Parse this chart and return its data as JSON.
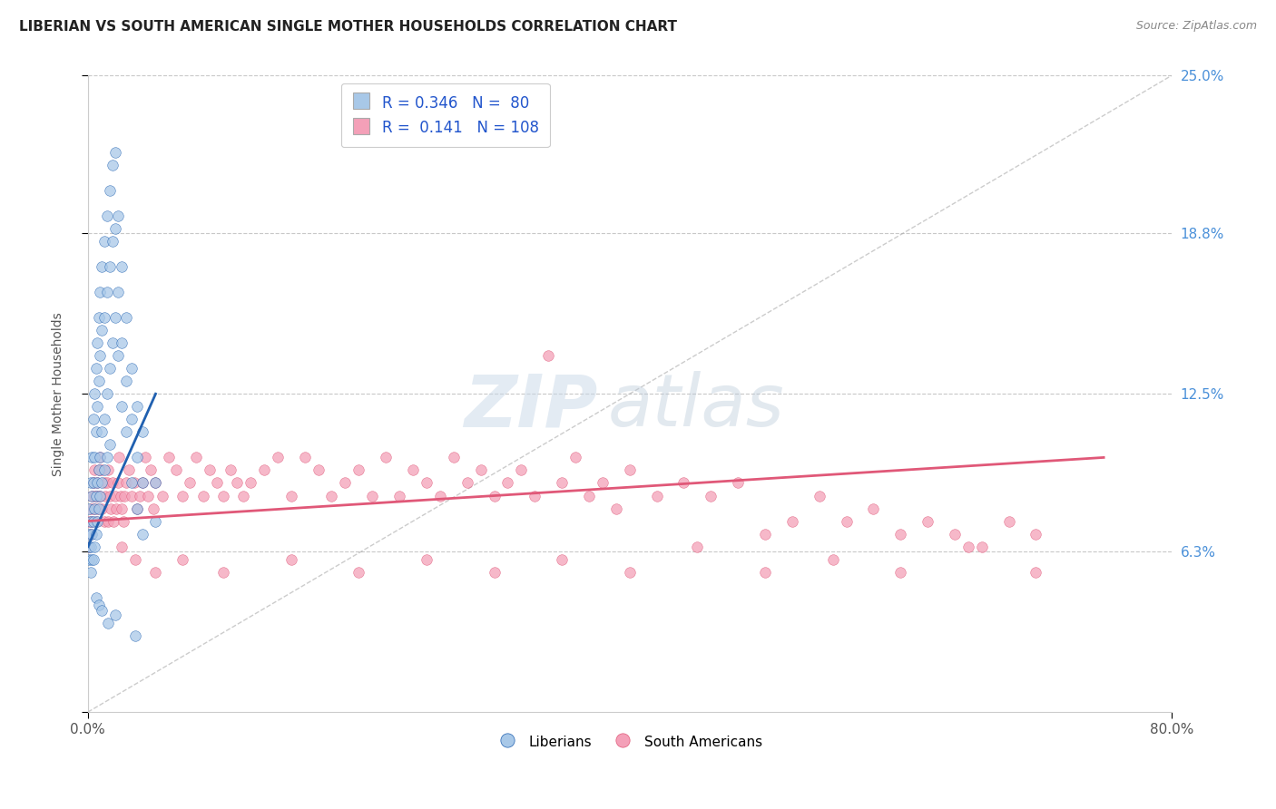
{
  "title": "LIBERIAN VS SOUTH AMERICAN SINGLE MOTHER HOUSEHOLDS CORRELATION CHART",
  "source": "Source: ZipAtlas.com",
  "ylabel": "Single Mother Households",
  "xlim": [
    0.0,
    0.8
  ],
  "ylim": [
    0.0,
    0.25
  ],
  "color_liberian": "#a8c8e8",
  "color_sa": "#f4a0b8",
  "line_color_liberian": "#2060b0",
  "line_color_sa": "#e05878",
  "grid_color": "#c8c8c8",
  "title_color": "#222222",
  "axis_label_color": "#555555",
  "tick_label_color_right": "#4a90d9",
  "watermark_zip": "ZIP",
  "watermark_atlas": "atlas",
  "liberian_scatter": [
    [
      0.001,
      0.08
    ],
    [
      0.001,
      0.07
    ],
    [
      0.001,
      0.065
    ],
    [
      0.001,
      0.06
    ],
    [
      0.002,
      0.09
    ],
    [
      0.002,
      0.075
    ],
    [
      0.002,
      0.065
    ],
    [
      0.002,
      0.055
    ],
    [
      0.003,
      0.1
    ],
    [
      0.003,
      0.085
    ],
    [
      0.003,
      0.07
    ],
    [
      0.003,
      0.06
    ],
    [
      0.004,
      0.115
    ],
    [
      0.004,
      0.09
    ],
    [
      0.004,
      0.075
    ],
    [
      0.004,
      0.06
    ],
    [
      0.005,
      0.125
    ],
    [
      0.005,
      0.1
    ],
    [
      0.005,
      0.08
    ],
    [
      0.005,
      0.065
    ],
    [
      0.006,
      0.135
    ],
    [
      0.006,
      0.11
    ],
    [
      0.006,
      0.085
    ],
    [
      0.006,
      0.07
    ],
    [
      0.007,
      0.145
    ],
    [
      0.007,
      0.12
    ],
    [
      0.007,
      0.09
    ],
    [
      0.007,
      0.075
    ],
    [
      0.008,
      0.155
    ],
    [
      0.008,
      0.13
    ],
    [
      0.008,
      0.095
    ],
    [
      0.008,
      0.08
    ],
    [
      0.009,
      0.165
    ],
    [
      0.009,
      0.14
    ],
    [
      0.009,
      0.1
    ],
    [
      0.009,
      0.085
    ],
    [
      0.01,
      0.175
    ],
    [
      0.01,
      0.15
    ],
    [
      0.01,
      0.11
    ],
    [
      0.01,
      0.09
    ],
    [
      0.012,
      0.185
    ],
    [
      0.012,
      0.155
    ],
    [
      0.012,
      0.115
    ],
    [
      0.012,
      0.095
    ],
    [
      0.014,
      0.195
    ],
    [
      0.014,
      0.165
    ],
    [
      0.014,
      0.125
    ],
    [
      0.014,
      0.1
    ],
    [
      0.016,
      0.205
    ],
    [
      0.016,
      0.175
    ],
    [
      0.016,
      0.135
    ],
    [
      0.016,
      0.105
    ],
    [
      0.018,
      0.215
    ],
    [
      0.018,
      0.185
    ],
    [
      0.018,
      0.145
    ],
    [
      0.02,
      0.22
    ],
    [
      0.02,
      0.19
    ],
    [
      0.02,
      0.155
    ],
    [
      0.022,
      0.195
    ],
    [
      0.022,
      0.165
    ],
    [
      0.022,
      0.14
    ],
    [
      0.025,
      0.175
    ],
    [
      0.025,
      0.145
    ],
    [
      0.025,
      0.12
    ],
    [
      0.028,
      0.155
    ],
    [
      0.028,
      0.13
    ],
    [
      0.028,
      0.11
    ],
    [
      0.032,
      0.135
    ],
    [
      0.032,
      0.115
    ],
    [
      0.032,
      0.09
    ],
    [
      0.036,
      0.12
    ],
    [
      0.036,
      0.1
    ],
    [
      0.036,
      0.08
    ],
    [
      0.04,
      0.11
    ],
    [
      0.04,
      0.09
    ],
    [
      0.04,
      0.07
    ],
    [
      0.05,
      0.09
    ],
    [
      0.05,
      0.075
    ],
    [
      0.006,
      0.045
    ],
    [
      0.008,
      0.042
    ],
    [
      0.01,
      0.04
    ],
    [
      0.015,
      0.035
    ],
    [
      0.02,
      0.038
    ],
    [
      0.035,
      0.03
    ]
  ],
  "sa_scatter": [
    [
      0.001,
      0.075
    ],
    [
      0.001,
      0.065
    ],
    [
      0.002,
      0.08
    ],
    [
      0.002,
      0.07
    ],
    [
      0.003,
      0.085
    ],
    [
      0.003,
      0.075
    ],
    [
      0.004,
      0.09
    ],
    [
      0.004,
      0.08
    ],
    [
      0.005,
      0.095
    ],
    [
      0.005,
      0.085
    ],
    [
      0.006,
      0.085
    ],
    [
      0.006,
      0.075
    ],
    [
      0.007,
      0.09
    ],
    [
      0.007,
      0.08
    ],
    [
      0.008,
      0.095
    ],
    [
      0.008,
      0.085
    ],
    [
      0.009,
      0.1
    ],
    [
      0.009,
      0.085
    ],
    [
      0.01,
      0.095
    ],
    [
      0.01,
      0.08
    ],
    [
      0.012,
      0.09
    ],
    [
      0.012,
      0.075
    ],
    [
      0.013,
      0.085
    ],
    [
      0.014,
      0.09
    ],
    [
      0.015,
      0.095
    ],
    [
      0.015,
      0.075
    ],
    [
      0.016,
      0.085
    ],
    [
      0.017,
      0.08
    ],
    [
      0.018,
      0.09
    ],
    [
      0.019,
      0.075
    ],
    [
      0.02,
      0.085
    ],
    [
      0.021,
      0.08
    ],
    [
      0.022,
      0.09
    ],
    [
      0.023,
      0.1
    ],
    [
      0.024,
      0.085
    ],
    [
      0.025,
      0.08
    ],
    [
      0.026,
      0.075
    ],
    [
      0.027,
      0.085
    ],
    [
      0.028,
      0.09
    ],
    [
      0.03,
      0.095
    ],
    [
      0.032,
      0.085
    ],
    [
      0.034,
      0.09
    ],
    [
      0.036,
      0.08
    ],
    [
      0.038,
      0.085
    ],
    [
      0.04,
      0.09
    ],
    [
      0.042,
      0.1
    ],
    [
      0.044,
      0.085
    ],
    [
      0.046,
      0.095
    ],
    [
      0.048,
      0.08
    ],
    [
      0.05,
      0.09
    ],
    [
      0.055,
      0.085
    ],
    [
      0.06,
      0.1
    ],
    [
      0.065,
      0.095
    ],
    [
      0.07,
      0.085
    ],
    [
      0.075,
      0.09
    ],
    [
      0.08,
      0.1
    ],
    [
      0.085,
      0.085
    ],
    [
      0.09,
      0.095
    ],
    [
      0.095,
      0.09
    ],
    [
      0.1,
      0.085
    ],
    [
      0.105,
      0.095
    ],
    [
      0.11,
      0.09
    ],
    [
      0.115,
      0.085
    ],
    [
      0.12,
      0.09
    ],
    [
      0.13,
      0.095
    ],
    [
      0.14,
      0.1
    ],
    [
      0.15,
      0.085
    ],
    [
      0.16,
      0.1
    ],
    [
      0.17,
      0.095
    ],
    [
      0.18,
      0.085
    ],
    [
      0.19,
      0.09
    ],
    [
      0.2,
      0.095
    ],
    [
      0.21,
      0.085
    ],
    [
      0.22,
      0.1
    ],
    [
      0.23,
      0.085
    ],
    [
      0.24,
      0.095
    ],
    [
      0.25,
      0.09
    ],
    [
      0.26,
      0.085
    ],
    [
      0.27,
      0.1
    ],
    [
      0.28,
      0.09
    ],
    [
      0.29,
      0.095
    ],
    [
      0.3,
      0.085
    ],
    [
      0.31,
      0.09
    ],
    [
      0.32,
      0.095
    ],
    [
      0.33,
      0.085
    ],
    [
      0.34,
      0.14
    ],
    [
      0.35,
      0.09
    ],
    [
      0.36,
      0.1
    ],
    [
      0.37,
      0.085
    ],
    [
      0.38,
      0.09
    ],
    [
      0.39,
      0.08
    ],
    [
      0.4,
      0.095
    ],
    [
      0.42,
      0.085
    ],
    [
      0.44,
      0.09
    ],
    [
      0.46,
      0.085
    ],
    [
      0.48,
      0.09
    ],
    [
      0.5,
      0.07
    ],
    [
      0.52,
      0.075
    ],
    [
      0.54,
      0.085
    ],
    [
      0.56,
      0.075
    ],
    [
      0.58,
      0.08
    ],
    [
      0.6,
      0.07
    ],
    [
      0.62,
      0.075
    ],
    [
      0.64,
      0.07
    ],
    [
      0.66,
      0.065
    ],
    [
      0.68,
      0.075
    ],
    [
      0.7,
      0.07
    ],
    [
      0.025,
      0.065
    ],
    [
      0.035,
      0.06
    ],
    [
      0.05,
      0.055
    ],
    [
      0.07,
      0.06
    ],
    [
      0.1,
      0.055
    ],
    [
      0.15,
      0.06
    ],
    [
      0.2,
      0.055
    ],
    [
      0.25,
      0.06
    ],
    [
      0.3,
      0.055
    ],
    [
      0.35,
      0.06
    ],
    [
      0.4,
      0.055
    ],
    [
      0.45,
      0.065
    ],
    [
      0.5,
      0.055
    ],
    [
      0.55,
      0.06
    ],
    [
      0.6,
      0.055
    ],
    [
      0.65,
      0.065
    ],
    [
      0.7,
      0.055
    ]
  ],
  "liberian_trend_x": [
    0.0,
    0.05
  ],
  "liberian_trend_y": [
    0.065,
    0.125
  ],
  "sa_trend_x": [
    0.0,
    0.75
  ],
  "sa_trend_y": [
    0.075,
    0.1
  ],
  "diag_line_x": [
    0.0,
    0.8
  ],
  "diag_line_y": [
    0.25,
    0.0
  ]
}
